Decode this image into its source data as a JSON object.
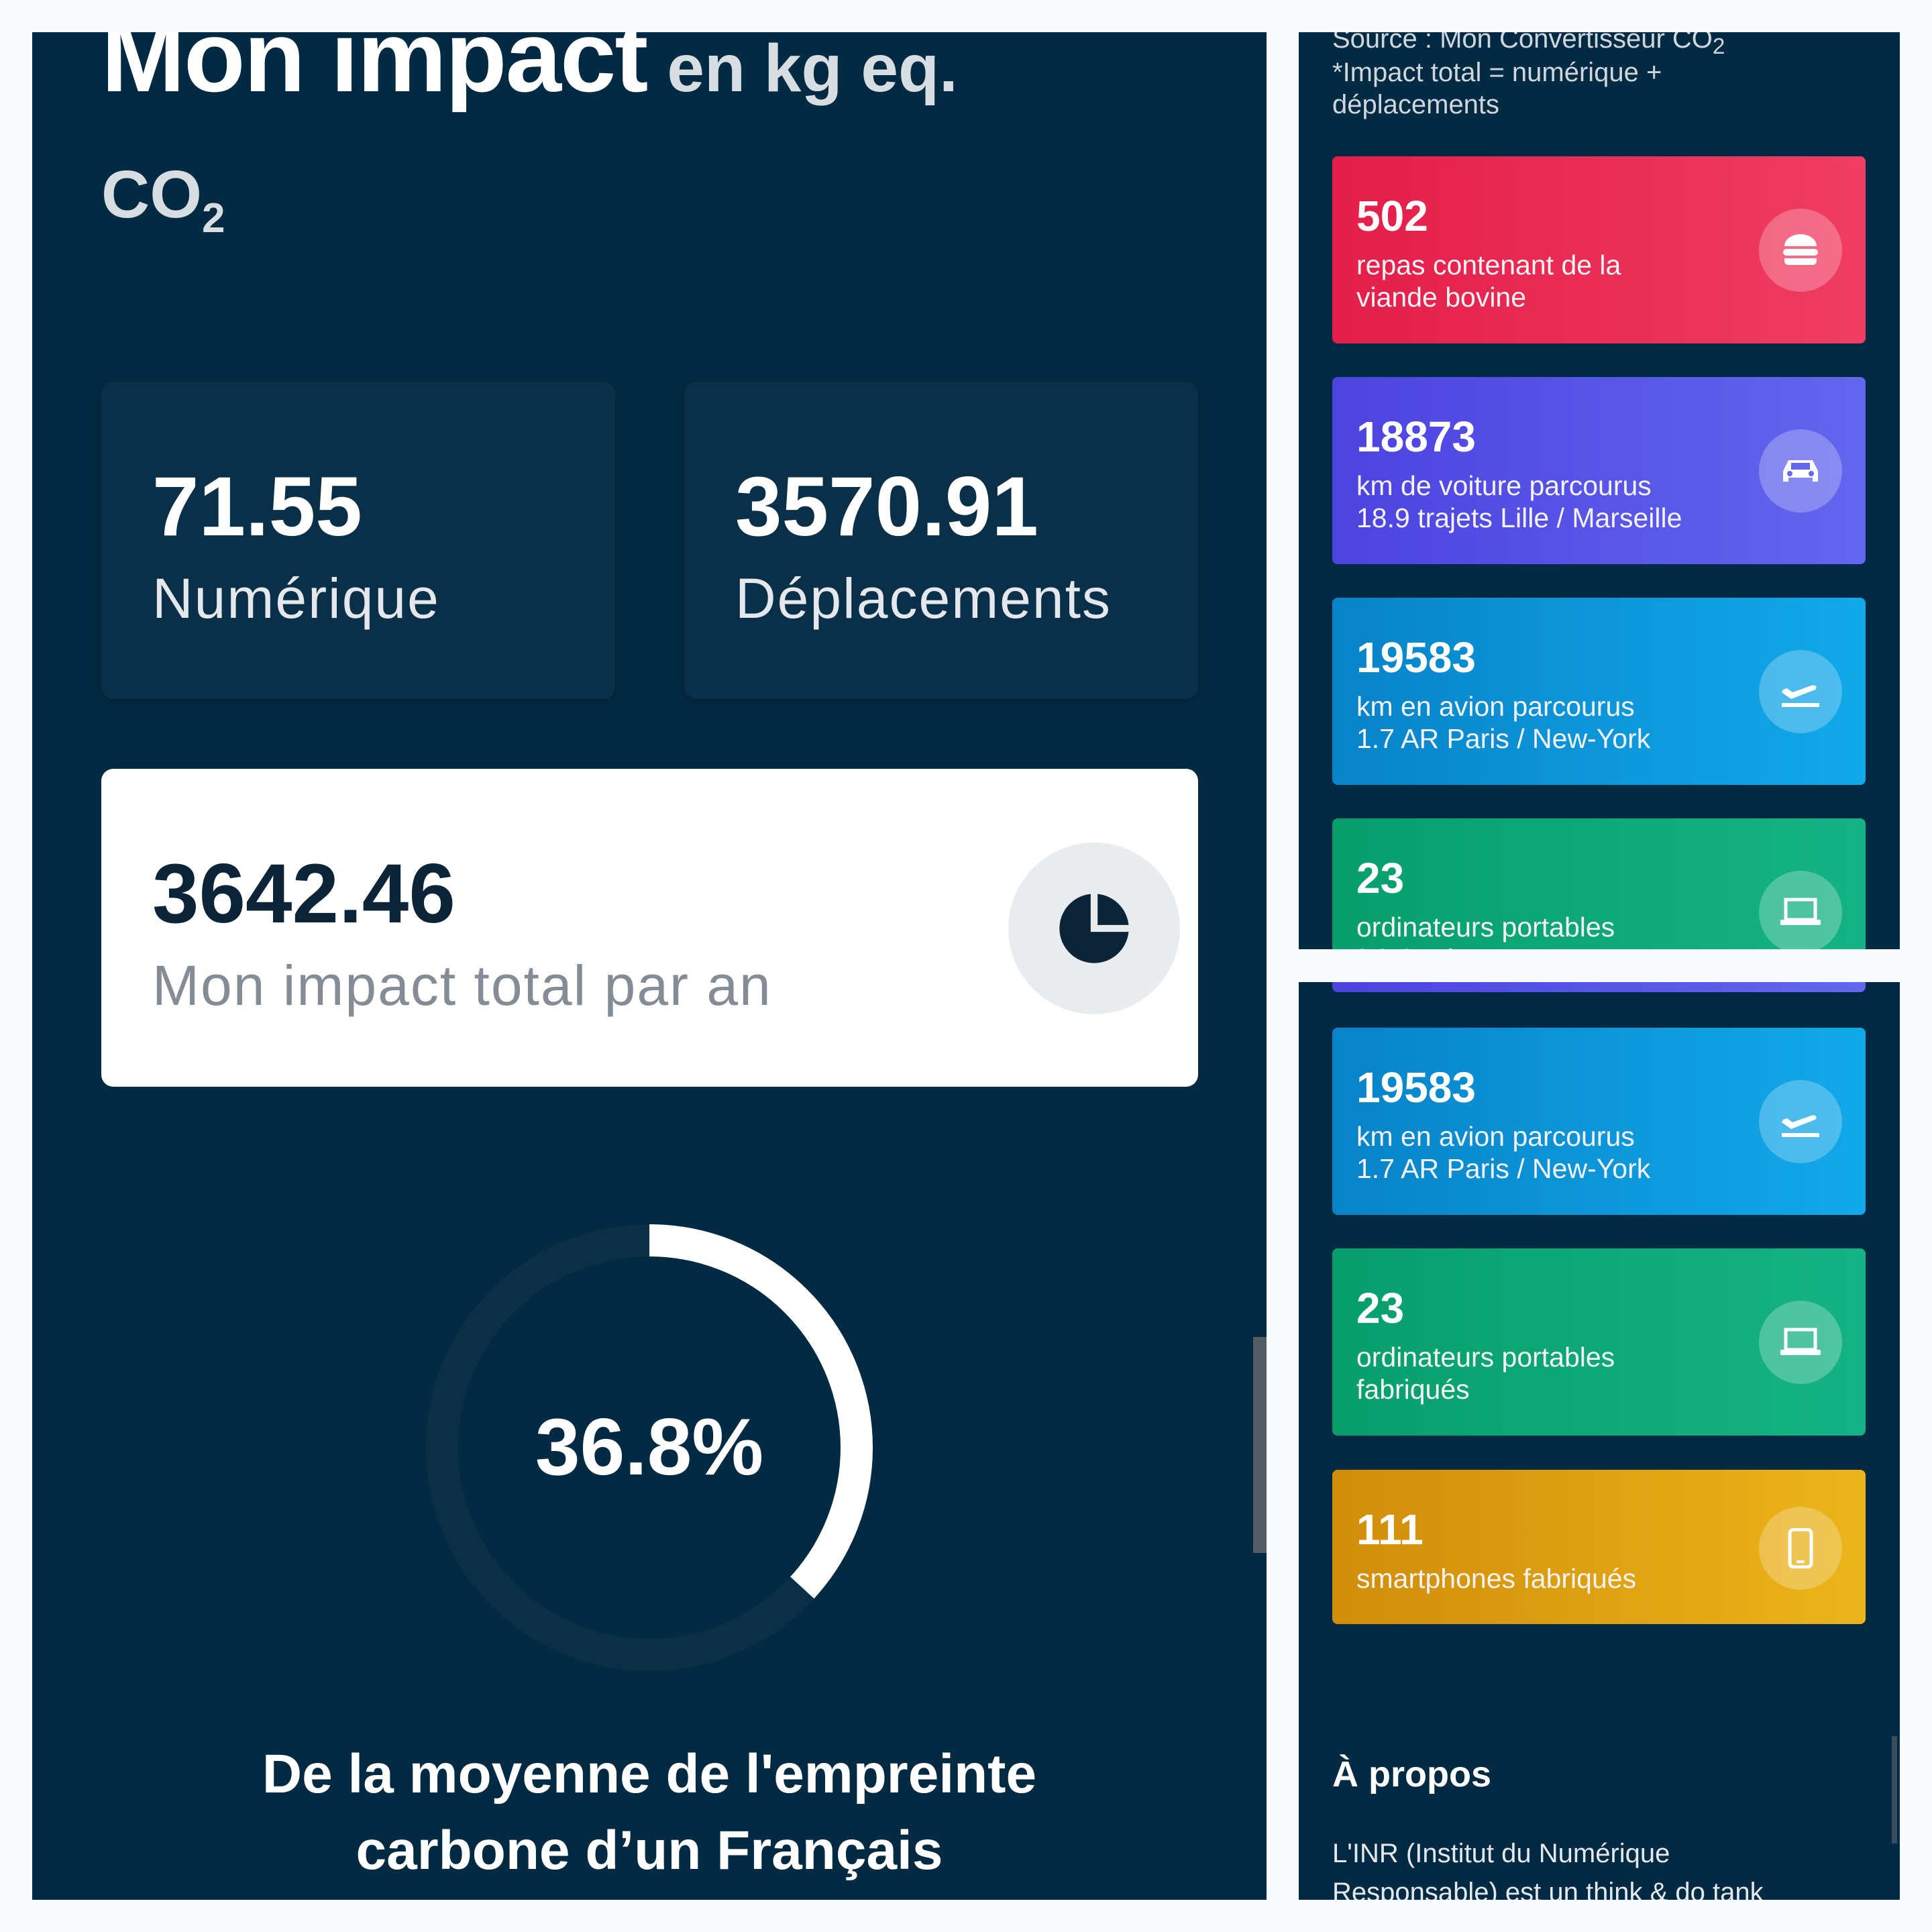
{
  "header": {
    "title": "Mon impact",
    "unit": "en kg eq.",
    "co2": "CO",
    "co2_sub": "2"
  },
  "stats": [
    {
      "value": "71.55",
      "label": "Numérique"
    },
    {
      "value": "3570.91",
      "label": "Déplacements"
    }
  ],
  "total": {
    "value": "3642.46",
    "label": "Mon impact total par an",
    "icon": "pie-chart-icon"
  },
  "gauge": {
    "percent": 36.8,
    "label": "36.8%",
    "caption_line1": "De la moyenne de l'empreinte",
    "caption_line2": "carbone d’un Français"
  },
  "notes": {
    "source_prefix": "Source : ",
    "source_link": "Mon Convertisseur CO",
    "source_sub": "2",
    "footnote_line1": "*Impact total = numérique +",
    "footnote_line2": "déplacements"
  },
  "equivalents": [
    {
      "value": "502",
      "line1": "repas contenant de la",
      "line2": "viande bovine",
      "icon": "burger-icon"
    },
    {
      "value": "18873",
      "line1": "km de voiture parcourus",
      "line2": "18.9 trajets Lille / Marseille",
      "icon": "car-icon"
    },
    {
      "value": "19583",
      "line1": "km en avion parcourus",
      "line2": "1.7 AR Paris / New-York",
      "icon": "plane-icon"
    },
    {
      "value": "23",
      "line1": "ordinateurs portables",
      "line2": "fabriqués",
      "icon": "laptop-icon"
    },
    {
      "value": "111",
      "line1": "smartphones fabriqués",
      "line2": "",
      "icon": "smartphone-icon"
    }
  ],
  "about": {
    "title": "À propos",
    "text_prefix": "L'INR (",
    "link": "Institut du Numérique",
    "line2": "Responsable) est un think & do tank"
  },
  "colors": {
    "background": "#032a43",
    "red": "#e31e4a",
    "purple": "#4d43e0",
    "blue": "#0883c8",
    "green": "#079e6c",
    "yellow": "#d08d0a"
  }
}
